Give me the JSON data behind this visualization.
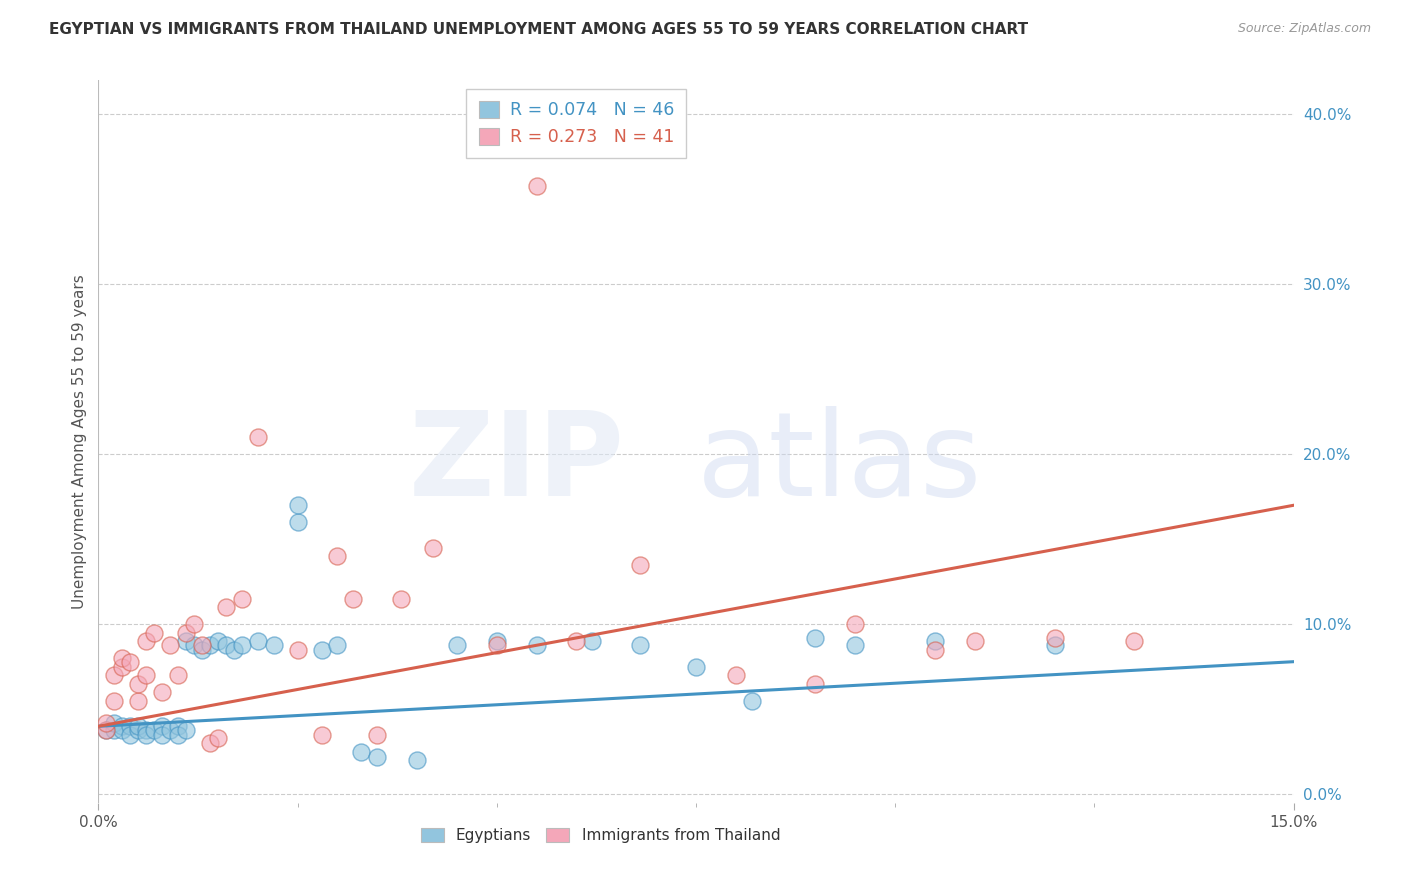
{
  "title": "EGYPTIAN VS IMMIGRANTS FROM THAILAND UNEMPLOYMENT AMONG AGES 55 TO 59 YEARS CORRELATION CHART",
  "source": "Source: ZipAtlas.com",
  "ylabel": "Unemployment Among Ages 55 to 59 years",
  "xlim": [
    0.0,
    0.15
  ],
  "ylim": [
    -0.005,
    0.42
  ],
  "color_egyptian": "#92c5de",
  "color_thailand": "#f4a7b9",
  "color_line_egyptian": "#4393c3",
  "color_line_thailand": "#d6604d",
  "color_title": "#333333",
  "color_right_axis": "#4393c3",
  "legend_r1": "R = 0.074",
  "legend_n1": "N = 46",
  "legend_r2": "R = 0.273",
  "legend_n2": "N = 41",
  "egy_x": [
    0.001,
    0.002,
    0.002,
    0.003,
    0.003,
    0.004,
    0.004,
    0.005,
    0.005,
    0.006,
    0.006,
    0.007,
    0.008,
    0.008,
    0.009,
    0.01,
    0.01,
    0.011,
    0.011,
    0.012,
    0.013,
    0.014,
    0.015,
    0.016,
    0.017,
    0.018,
    0.02,
    0.022,
    0.025,
    0.025,
    0.028,
    0.03,
    0.033,
    0.035,
    0.04,
    0.045,
    0.05,
    0.055,
    0.062,
    0.068,
    0.075,
    0.082,
    0.09,
    0.095,
    0.105,
    0.12
  ],
  "egy_y": [
    0.038,
    0.038,
    0.042,
    0.04,
    0.038,
    0.04,
    0.035,
    0.038,
    0.04,
    0.038,
    0.035,
    0.038,
    0.04,
    0.035,
    0.038,
    0.04,
    0.035,
    0.038,
    0.09,
    0.088,
    0.085,
    0.088,
    0.09,
    0.088,
    0.085,
    0.088,
    0.09,
    0.088,
    0.16,
    0.17,
    0.085,
    0.088,
    0.025,
    0.022,
    0.02,
    0.088,
    0.09,
    0.088,
    0.09,
    0.088,
    0.075,
    0.055,
    0.092,
    0.088,
    0.09,
    0.088
  ],
  "thai_x": [
    0.001,
    0.001,
    0.002,
    0.002,
    0.003,
    0.003,
    0.004,
    0.005,
    0.005,
    0.006,
    0.006,
    0.007,
    0.008,
    0.009,
    0.01,
    0.011,
    0.012,
    0.013,
    0.014,
    0.015,
    0.016,
    0.018,
    0.02,
    0.025,
    0.028,
    0.03,
    0.032,
    0.035,
    0.038,
    0.042,
    0.05,
    0.055,
    0.06,
    0.068,
    0.08,
    0.09,
    0.095,
    0.105,
    0.11,
    0.12,
    0.13
  ],
  "thai_y": [
    0.038,
    0.042,
    0.055,
    0.07,
    0.075,
    0.08,
    0.078,
    0.055,
    0.065,
    0.07,
    0.09,
    0.095,
    0.06,
    0.088,
    0.07,
    0.095,
    0.1,
    0.088,
    0.03,
    0.033,
    0.11,
    0.115,
    0.21,
    0.085,
    0.035,
    0.14,
    0.115,
    0.035,
    0.115,
    0.145,
    0.088,
    0.358,
    0.09,
    0.135,
    0.07,
    0.065,
    0.1,
    0.085,
    0.09,
    0.092,
    0.09
  ]
}
